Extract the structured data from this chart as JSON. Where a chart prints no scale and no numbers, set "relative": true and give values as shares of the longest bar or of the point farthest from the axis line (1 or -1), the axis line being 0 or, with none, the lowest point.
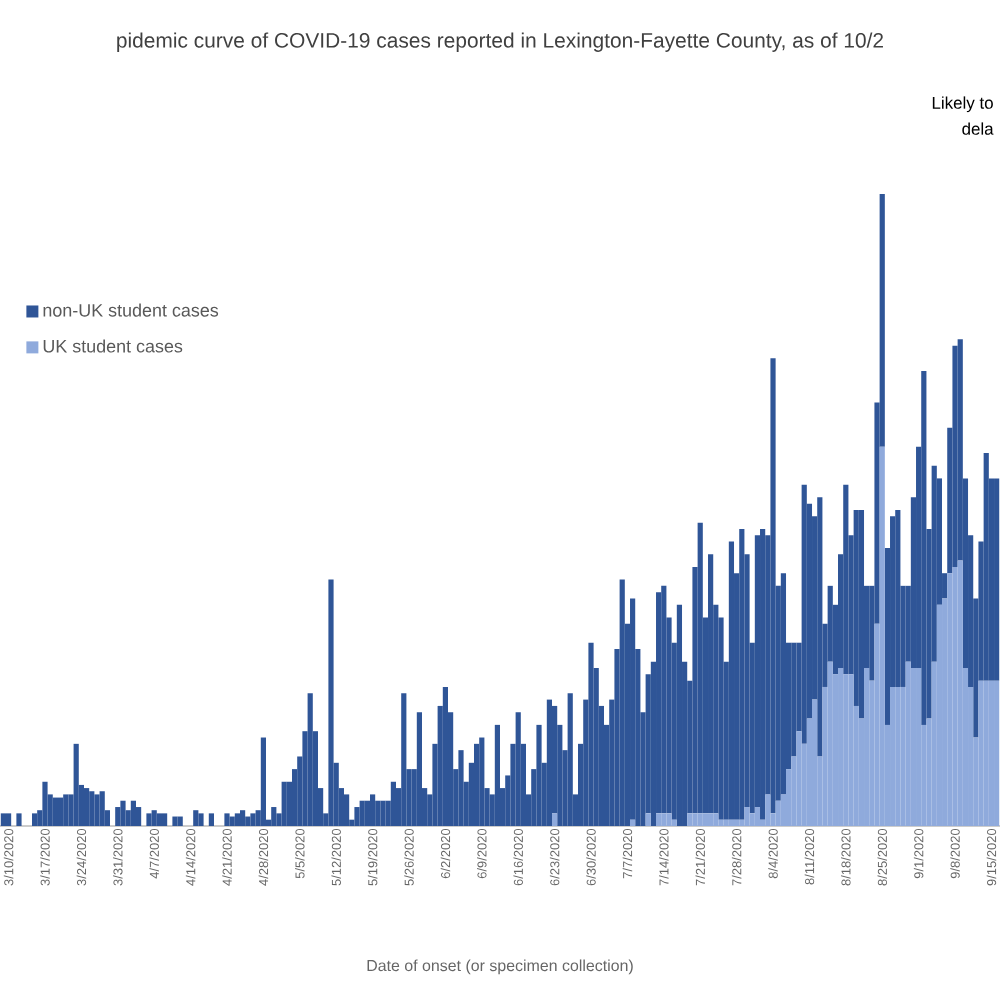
{
  "chart_data": {
    "type": "bar",
    "stacked": true,
    "relative": true,
    "title": "pidemic curve of COVID-19 cases reported in Lexington-Fayette County, as of 10/2",
    "xlabel": "Date of onset (or specimen collection)",
    "annotations": [
      "Likely to",
      "dela"
    ],
    "legend": "top left",
    "categories": [
      null,
      "3/10/2020",
      null,
      null,
      null,
      null,
      null,
      null,
      "3/17/2020",
      null,
      null,
      null,
      null,
      null,
      null,
      "3/24/2020",
      null,
      null,
      null,
      null,
      null,
      null,
      "3/31/2020",
      null,
      null,
      null,
      null,
      null,
      null,
      "4/7/2020",
      null,
      null,
      null,
      null,
      null,
      null,
      "4/14/2020",
      null,
      null,
      null,
      null,
      null,
      null,
      "4/21/2020",
      null,
      null,
      null,
      null,
      null,
      null,
      "4/28/2020",
      null,
      null,
      null,
      null,
      null,
      null,
      "5/5/2020",
      null,
      null,
      null,
      null,
      null,
      null,
      "5/12/2020",
      null,
      null,
      null,
      null,
      null,
      null,
      "5/19/2020",
      null,
      null,
      null,
      null,
      null,
      null,
      "5/26/2020",
      null,
      null,
      null,
      null,
      null,
      null,
      "6/2/2020",
      null,
      null,
      null,
      null,
      null,
      null,
      "6/9/2020",
      null,
      null,
      null,
      null,
      null,
      null,
      "6/16/2020",
      null,
      null,
      null,
      null,
      null,
      null,
      "6/23/2020",
      null,
      null,
      null,
      null,
      null,
      null,
      "6/30/2020",
      null,
      null,
      null,
      null,
      null,
      null,
      "7/7/2020",
      null,
      null,
      null,
      null,
      null,
      null,
      "7/14/2020",
      null,
      null,
      null,
      null,
      null,
      null,
      "7/21/2020",
      null,
      null,
      null,
      null,
      null,
      null,
      "7/28/2020",
      null,
      null,
      null,
      null,
      null,
      null,
      "8/4/2020",
      null,
      null,
      null,
      null,
      null,
      null,
      "8/11/2020",
      null,
      null,
      null,
      null,
      null,
      null,
      "8/18/2020",
      null,
      null,
      null,
      null,
      null,
      null,
      "8/25/2020",
      null,
      null,
      null,
      null,
      null,
      null,
      "9/1/2020",
      null,
      null,
      null,
      null,
      null,
      null,
      "9/8/2020",
      null,
      null,
      null,
      null,
      null,
      null,
      "9/15/2020",
      null
    ],
    "series": [
      {
        "name": "UK student cases",
        "color": "#8faadc",
        "values": [
          0,
          0,
          0,
          0,
          0,
          0,
          0,
          0,
          0,
          0,
          0,
          0,
          0,
          0,
          0,
          0,
          0,
          0,
          0,
          0,
          0,
          0,
          0,
          0,
          0,
          0,
          0,
          0,
          0,
          0,
          0,
          0,
          0,
          0,
          0,
          0,
          0,
          0,
          0,
          0,
          0,
          0,
          0,
          0,
          0,
          0,
          0,
          0,
          0,
          0,
          0,
          0,
          0,
          0,
          0,
          0,
          0,
          0,
          0,
          0,
          0,
          0,
          0,
          0,
          0,
          0,
          0,
          0,
          0,
          0,
          0,
          0,
          0,
          0,
          0,
          0,
          0,
          0,
          0,
          0,
          0,
          0,
          0,
          0,
          0,
          0,
          0,
          0,
          0,
          0,
          0,
          0,
          0,
          0,
          0,
          0,
          0,
          0,
          0,
          0,
          0,
          0,
          0,
          0,
          0,
          0,
          0.02,
          0,
          0,
          0,
          0,
          0,
          0,
          0,
          0,
          0,
          0,
          0,
          0,
          0,
          0,
          0.01,
          0,
          0,
          0.02,
          0,
          0.02,
          0.02,
          0.02,
          0.01,
          0,
          0,
          0.02,
          0.02,
          0.02,
          0.02,
          0.02,
          0.02,
          0.01,
          0.01,
          0.01,
          0.01,
          0.01,
          0.03,
          0.02,
          0.03,
          0.01,
          0.05,
          0.02,
          0.04,
          0.05,
          0.09,
          0.11,
          0.15,
          0.13,
          0.17,
          0.2,
          0.11,
          0.22,
          0.26,
          0.24,
          0.25,
          0.24,
          0.24,
          0.19,
          0.17,
          0.25,
          0.23,
          0.32,
          0.6,
          0.16,
          0.22,
          0.22,
          0.22,
          0.26,
          0.25,
          0.25,
          0.16,
          0.17,
          0.26,
          0.35,
          0.36,
          0.4,
          0.41,
          0.42,
          0.25,
          0.22,
          0.14,
          0.23,
          0.23,
          0.23,
          0.23
        ]
      },
      {
        "name": "non-UK student cases",
        "color": "#2f5597",
        "values": [
          0.02,
          0.02,
          0,
          0.02,
          0,
          0,
          0.02,
          0.025,
          0.07,
          0.05,
          0.045,
          0.045,
          0.05,
          0.05,
          0.13,
          0.065,
          0.06,
          0.055,
          0.05,
          0.055,
          0.025,
          0,
          0.03,
          0.04,
          0.025,
          0.04,
          0.03,
          0,
          0.02,
          0.025,
          0.02,
          0.02,
          0,
          0.015,
          0.015,
          0,
          0,
          0.025,
          0.02,
          0,
          0.02,
          0,
          0,
          0.02,
          0.015,
          0.02,
          0.025,
          0.015,
          0.02,
          0.025,
          0.14,
          0.01,
          0.03,
          0.02,
          0.07,
          0.07,
          0.09,
          0.11,
          0.15,
          0.21,
          0.15,
          0.06,
          0.02,
          0.39,
          0.1,
          0.06,
          0.05,
          0.01,
          0.03,
          0.04,
          0.04,
          0.05,
          0.04,
          0.04,
          0.04,
          0.07,
          0.06,
          0.21,
          0.09,
          0.09,
          0.18,
          0.06,
          0.05,
          0.13,
          0.19,
          0.22,
          0.18,
          0.09,
          0.12,
          0.07,
          0.1,
          0.13,
          0.14,
          0.06,
          0.05,
          0.16,
          0.06,
          0.08,
          0.13,
          0.18,
          0.13,
          0.05,
          0.09,
          0.16,
          0.1,
          0.2,
          0.17,
          0.16,
          0.12,
          0.21,
          0.05,
          0.13,
          0.2,
          0.29,
          0.25,
          0.19,
          0.16,
          0.2,
          0.28,
          0.39,
          0.32,
          0.35,
          0.28,
          0.18,
          0.22,
          0.26,
          0.35,
          0.36,
          0.31,
          0.28,
          0.35,
          0.26,
          0.21,
          0.39,
          0.46,
          0.31,
          0.41,
          0.33,
          0.32,
          0.25,
          0.44,
          0.39,
          0.46,
          0.4,
          0.27,
          0.43,
          0.46,
          0.41,
          0.72,
          0.34,
          0.35,
          0.2,
          0.18,
          0.14,
          0.41,
          0.34,
          0.29,
          0.41,
          0.1,
          0.12,
          0.11,
          0.18,
          0.3,
          0.22,
          0.31,
          0.33,
          0.13,
          0.15,
          0.35,
          0.4,
          0.28,
          0.27,
          0.28,
          0.16,
          0.12,
          0.27,
          0.35,
          0.56,
          0.3,
          0.31,
          0.2,
          0.04,
          0.23,
          0.35,
          0.35,
          0.3,
          0.24,
          0.22,
          0.22,
          0.36,
          0.32,
          0.32
        ]
      }
    ]
  }
}
